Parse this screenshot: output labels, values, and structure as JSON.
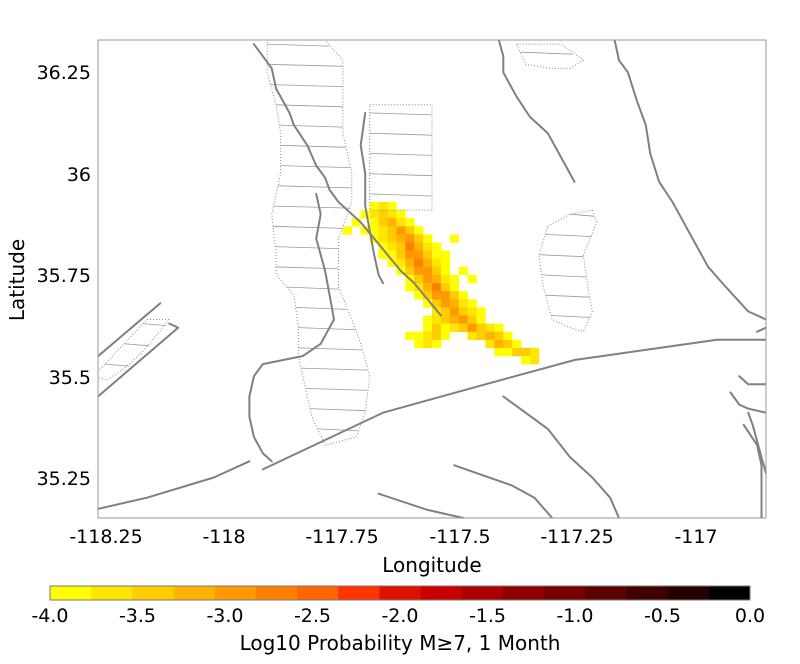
{
  "map": {
    "xlabel": "Longitude",
    "ylabel": "Latitude",
    "x_ticks": [
      "-118.25",
      "-118",
      "-117.75",
      "-117.5",
      "-117.25",
      "-117"
    ],
    "y_ticks": [
      "36.25",
      "36",
      "35.75",
      "35.5",
      "35.25"
    ],
    "xlim": [
      -118.37,
      -116.87
    ],
    "ylim": [
      35.15,
      36.33
    ],
    "frame_color": "#999999",
    "fault_color": "#808080"
  },
  "colorbar": {
    "label": "Log10 Probability M≥7, 1 Month",
    "ticks": [
      "-4.0",
      "-3.5",
      "-3.0",
      "-2.5",
      "-2.0",
      "-1.5",
      "-1.0",
      "-0.5",
      "0.0"
    ],
    "range": [
      -4.0,
      0.0
    ],
    "colors": [
      "#ffff00",
      "#ffe600",
      "#ffcc00",
      "#ffb300",
      "#ff9900",
      "#ff8000",
      "#ff6600",
      "#ff3300",
      "#e01000",
      "#c80000",
      "#aa0000",
      "#8f0000",
      "#760000",
      "#5c0000",
      "#400000",
      "#250000",
      "#000000"
    ]
  },
  "chart_data": {
    "type": "heatmap",
    "xlabel": "Longitude",
    "ylabel": "Latitude",
    "cell_deg": 0.02,
    "cells": [
      [
        -117.75,
        35.92,
        -3.9
      ],
      [
        -117.73,
        35.92,
        -3.7
      ],
      [
        -117.71,
        35.92,
        -3.9
      ],
      [
        -117.77,
        35.9,
        -4.0
      ],
      [
        -117.75,
        35.9,
        -3.6
      ],
      [
        -117.73,
        35.9,
        -3.3
      ],
      [
        -117.71,
        35.9,
        -3.6
      ],
      [
        -117.69,
        35.9,
        -4.0
      ],
      [
        -117.79,
        35.88,
        -4.0
      ],
      [
        -117.75,
        35.88,
        -3.8
      ],
      [
        -117.73,
        35.88,
        -3.4
      ],
      [
        -117.71,
        35.88,
        -3.2
      ],
      [
        -117.69,
        35.88,
        -3.6
      ],
      [
        -117.67,
        35.88,
        -4.0
      ],
      [
        -117.75,
        35.86,
        -4.0
      ],
      [
        -117.73,
        35.86,
        -3.7
      ],
      [
        -117.71,
        35.86,
        -3.3
      ],
      [
        -117.69,
        35.86,
        -3.0
      ],
      [
        -117.67,
        35.86,
        -3.5
      ],
      [
        -117.65,
        35.86,
        -4.0
      ],
      [
        -117.75,
        35.84,
        -3.9
      ],
      [
        -117.73,
        35.84,
        -3.6
      ],
      [
        -117.71,
        35.84,
        -3.5
      ],
      [
        -117.69,
        35.84,
        -3.1
      ],
      [
        -117.67,
        35.84,
        -2.9
      ],
      [
        -117.65,
        35.84,
        -3.4
      ],
      [
        -117.63,
        35.84,
        -3.9
      ],
      [
        -117.73,
        35.82,
        -3.9
      ],
      [
        -117.71,
        35.82,
        -3.6
      ],
      [
        -117.69,
        35.82,
        -3.3
      ],
      [
        -117.67,
        35.82,
        -2.8
      ],
      [
        -117.65,
        35.82,
        -3.1
      ],
      [
        -117.63,
        35.82,
        -3.6
      ],
      [
        -117.61,
        35.82,
        -4.0
      ],
      [
        -117.73,
        35.8,
        -4.0
      ],
      [
        -117.71,
        35.8,
        -3.8
      ],
      [
        -117.69,
        35.8,
        -3.5
      ],
      [
        -117.67,
        35.8,
        -3.0
      ],
      [
        -117.65,
        35.8,
        -2.9
      ],
      [
        -117.63,
        35.8,
        -3.4
      ],
      [
        -117.61,
        35.8,
        -3.8
      ],
      [
        -117.59,
        35.8,
        -4.0
      ],
      [
        -117.71,
        35.78,
        -3.9
      ],
      [
        -117.69,
        35.78,
        -3.6
      ],
      [
        -117.67,
        35.78,
        -3.2
      ],
      [
        -117.65,
        35.78,
        -2.8
      ],
      [
        -117.63,
        35.78,
        -3.2
      ],
      [
        -117.61,
        35.78,
        -3.6
      ],
      [
        -117.59,
        35.78,
        -3.9
      ],
      [
        -117.69,
        35.76,
        -3.9
      ],
      [
        -117.67,
        35.76,
        -3.5
      ],
      [
        -117.65,
        35.76,
        -3.0
      ],
      [
        -117.63,
        35.76,
        -2.9
      ],
      [
        -117.61,
        35.76,
        -3.4
      ],
      [
        -117.59,
        35.76,
        -3.8
      ],
      [
        -117.67,
        35.74,
        -3.8
      ],
      [
        -117.65,
        35.74,
        -3.3
      ],
      [
        -117.63,
        35.74,
        -2.9
      ],
      [
        -117.61,
        35.74,
        -3.1
      ],
      [
        -117.59,
        35.74,
        -3.6
      ],
      [
        -117.57,
        35.74,
        -4.0
      ],
      [
        -117.67,
        35.72,
        -3.9
      ],
      [
        -117.65,
        35.72,
        -3.6
      ],
      [
        -117.63,
        35.72,
        -3.2
      ],
      [
        -117.61,
        35.72,
        -2.8
      ],
      [
        -117.59,
        35.72,
        -3.3
      ],
      [
        -117.57,
        35.72,
        -3.8
      ],
      [
        -117.65,
        35.7,
        -3.9
      ],
      [
        -117.63,
        35.7,
        -3.5
      ],
      [
        -117.61,
        35.7,
        -3.0
      ],
      [
        -117.59,
        35.7,
        -3.0
      ],
      [
        -117.57,
        35.7,
        -3.5
      ],
      [
        -117.55,
        35.7,
        -3.9
      ],
      [
        -117.63,
        35.68,
        -3.8
      ],
      [
        -117.61,
        35.68,
        -3.3
      ],
      [
        -117.59,
        35.68,
        -2.9
      ],
      [
        -117.57,
        35.68,
        -3.2
      ],
      [
        -117.55,
        35.68,
        -3.7
      ],
      [
        -117.53,
        35.68,
        -4.0
      ],
      [
        -117.61,
        35.66,
        -3.6
      ],
      [
        -117.59,
        35.66,
        -3.4
      ],
      [
        -117.57,
        35.66,
        -3.0
      ],
      [
        -117.55,
        35.66,
        -3.3
      ],
      [
        -117.53,
        35.66,
        -3.7
      ],
      [
        -117.51,
        35.66,
        -4.0
      ],
      [
        -117.63,
        35.64,
        -3.9
      ],
      [
        -117.61,
        35.64,
        -3.7
      ],
      [
        -117.59,
        35.64,
        -3.5
      ],
      [
        -117.57,
        35.64,
        -3.2
      ],
      [
        -117.55,
        35.64,
        -3.0
      ],
      [
        -117.53,
        35.64,
        -3.4
      ],
      [
        -117.51,
        35.64,
        -3.8
      ],
      [
        -117.63,
        35.62,
        -3.8
      ],
      [
        -117.61,
        35.62,
        -3.5
      ],
      [
        -117.59,
        35.62,
        -3.9
      ],
      [
        -117.57,
        35.62,
        -3.6
      ],
      [
        -117.55,
        35.62,
        -3.3
      ],
      [
        -117.53,
        35.62,
        -3.0
      ],
      [
        -117.51,
        35.62,
        -3.3
      ],
      [
        -117.49,
        35.62,
        -3.7
      ],
      [
        -117.47,
        35.62,
        -4.0
      ],
      [
        -117.65,
        35.6,
        -4.0
      ],
      [
        -117.63,
        35.6,
        -3.6
      ],
      [
        -117.61,
        35.6,
        -3.4
      ],
      [
        -117.59,
        35.6,
        -3.8
      ],
      [
        -117.53,
        35.6,
        -3.7
      ],
      [
        -117.51,
        35.6,
        -3.3
      ],
      [
        -117.49,
        35.6,
        -3.1
      ],
      [
        -117.47,
        35.6,
        -3.4
      ],
      [
        -117.45,
        35.6,
        -3.8
      ],
      [
        -117.65,
        35.58,
        -3.9
      ],
      [
        -117.63,
        35.58,
        -3.7
      ],
      [
        -117.61,
        35.58,
        -3.9
      ],
      [
        -117.49,
        35.58,
        -3.6
      ],
      [
        -117.47,
        35.58,
        -3.2
      ],
      [
        -117.45,
        35.58,
        -3.4
      ],
      [
        -117.43,
        35.58,
        -3.8
      ],
      [
        -117.45,
        35.56,
        -3.9
      ],
      [
        -117.43,
        35.56,
        -3.5
      ],
      [
        -117.41,
        35.56,
        -3.3
      ],
      [
        -117.39,
        35.56,
        -3.7
      ],
      [
        -117.41,
        35.54,
        -4.0
      ],
      [
        -117.39,
        35.54,
        -3.7
      ],
      [
        -117.61,
        35.82,
        -3.9
      ],
      [
        -117.57,
        35.84,
        -4.0
      ],
      [
        -117.55,
        35.76,
        -3.8
      ],
      [
        -117.53,
        35.74,
        -4.0
      ],
      [
        -117.77,
        35.86,
        -3.9
      ],
      [
        -117.81,
        35.86,
        -4.0
      ],
      [
        -117.47,
        35.56,
        -3.9
      ],
      [
        -117.67,
        35.6,
        -4.0
      ]
    ],
    "faults": [
      [
        [
          -118.38,
          35.54
        ],
        [
          -118.23,
          35.68
        ]
      ],
      [
        [
          -118.37,
          35.45
        ],
        [
          -118.19,
          35.62
        ],
        [
          -118.21,
          35.63
        ]
      ],
      [
        [
          -118.02,
          36.32
        ],
        [
          -118.0,
          36.29
        ],
        [
          -117.98,
          36.26
        ],
        [
          -117.97,
          36.21
        ],
        [
          -117.94,
          36.15
        ],
        [
          -117.93,
          36.12
        ],
        [
          -117.9,
          36.07
        ],
        [
          -117.88,
          36.02
        ],
        [
          -117.86,
          35.99
        ],
        [
          -117.85,
          35.96
        ],
        [
          -117.83,
          35.93
        ],
        [
          -117.81,
          35.91
        ],
        [
          -117.78,
          35.88
        ],
        [
          -117.75,
          35.84
        ],
        [
          -117.72,
          35.8
        ],
        [
          -117.69,
          35.76
        ],
        [
          -117.66,
          35.73
        ],
        [
          -117.63,
          35.69
        ],
        [
          -117.6,
          35.65
        ]
      ],
      [
        [
          -117.88,
          35.95
        ],
        [
          -117.87,
          35.9
        ],
        [
          -117.88,
          35.84
        ],
        [
          -117.86,
          35.76
        ],
        [
          -117.85,
          35.7
        ],
        [
          -117.84,
          35.64
        ],
        [
          -117.87,
          35.58
        ],
        [
          -117.91,
          35.55
        ],
        [
          -118.0,
          35.53
        ],
        [
          -118.02,
          35.5
        ],
        [
          -118.03,
          35.45
        ],
        [
          -118.03,
          35.4
        ],
        [
          -118.02,
          35.35
        ],
        [
          -118.0,
          35.31
        ],
        [
          -117.98,
          35.29
        ]
      ],
      [
        [
          -117.77,
          36.15
        ],
        [
          -117.78,
          36.07
        ],
        [
          -117.77,
          36.0
        ],
        [
          -117.77,
          35.92
        ],
        [
          -117.76,
          35.86
        ],
        [
          -117.75,
          35.8
        ],
        [
          -117.74,
          35.75
        ],
        [
          -117.73,
          35.73
        ]
      ],
      [
        [
          -118.0,
          35.27
        ],
        [
          -117.73,
          35.41
        ],
        [
          -117.5,
          35.48
        ],
        [
          -117.3,
          35.54
        ],
        [
          -116.98,
          35.59
        ],
        [
          -116.87,
          35.59
        ]
      ],
      [
        [
          -118.03,
          35.29
        ],
        [
          -118.11,
          35.25
        ],
        [
          -118.26,
          35.2
        ],
        [
          -118.38,
          35.17
        ]
      ],
      [
        [
          -117.74,
          35.21
        ],
        [
          -117.63,
          35.17
        ],
        [
          -117.55,
          35.15
        ]
      ],
      [
        [
          -117.57,
          35.28
        ],
        [
          -117.44,
          35.23
        ],
        [
          -117.39,
          35.2
        ],
        [
          -117.35,
          35.15
        ]
      ],
      [
        [
          -117.46,
          35.45
        ],
        [
          -117.36,
          35.37
        ],
        [
          -117.31,
          35.3
        ],
        [
          -117.26,
          35.25
        ],
        [
          -117.22,
          35.2
        ],
        [
          -117.2,
          35.15
        ]
      ],
      [
        [
          -117.47,
          36.33
        ],
        [
          -117.46,
          36.29
        ],
        [
          -117.46,
          36.25
        ],
        [
          -117.43,
          36.19
        ],
        [
          -117.4,
          36.14
        ],
        [
          -117.36,
          36.1
        ],
        [
          -117.34,
          36.06
        ],
        [
          -117.32,
          36.02
        ],
        [
          -117.3,
          35.98
        ]
      ],
      [
        [
          -117.21,
          36.33
        ],
        [
          -117.2,
          36.28
        ],
        [
          -117.18,
          36.25
        ],
        [
          -117.16,
          36.18
        ],
        [
          -117.14,
          36.12
        ],
        [
          -117.13,
          36.05
        ],
        [
          -117.11,
          35.98
        ],
        [
          -117.08,
          35.93
        ],
        [
          -117.06,
          35.89
        ],
        [
          -117.03,
          35.83
        ],
        [
          -117.0,
          35.77
        ],
        [
          -116.96,
          35.72
        ],
        [
          -116.91,
          35.66
        ],
        [
          -116.87,
          35.64
        ]
      ],
      [
        [
          -116.93,
          35.5
        ],
        [
          -116.91,
          35.48
        ],
        [
          -116.87,
          35.48
        ]
      ],
      [
        [
          -116.95,
          35.46
        ],
        [
          -116.93,
          35.43
        ],
        [
          -116.91,
          35.42
        ],
        [
          -116.87,
          35.41
        ]
      ],
      [
        [
          -116.91,
          35.41
        ],
        [
          -116.9,
          35.38
        ],
        [
          -116.89,
          35.34
        ],
        [
          -116.88,
          35.3
        ],
        [
          -116.87,
          35.26
        ]
      ],
      [
        [
          -116.92,
          35.38
        ],
        [
          -116.89,
          35.33
        ],
        [
          -116.88,
          35.28
        ],
        [
          -116.88,
          35.15
        ]
      ],
      [
        [
          -116.89,
          35.61
        ],
        [
          -116.87,
          35.62
        ]
      ]
    ],
    "dotted_zones": [
      [
        [
          -117.76,
          36.17
        ],
        [
          -117.62,
          36.17
        ],
        [
          -117.62,
          35.91
        ],
        [
          -117.76,
          35.91
        ]
      ],
      [
        [
          -117.99,
          36.33
        ],
        [
          -117.86,
          36.33
        ],
        [
          -117.82,
          36.28
        ],
        [
          -117.82,
          36.1
        ],
        [
          -117.8,
          36.0
        ],
        [
          -117.8,
          35.93
        ],
        [
          -117.83,
          35.84
        ],
        [
          -117.83,
          35.72
        ],
        [
          -117.8,
          35.64
        ],
        [
          -117.78,
          35.58
        ],
        [
          -117.76,
          35.5
        ],
        [
          -117.77,
          35.41
        ],
        [
          -117.79,
          35.35
        ],
        [
          -117.86,
          35.33
        ],
        [
          -117.89,
          35.4
        ],
        [
          -117.9,
          35.45
        ],
        [
          -117.92,
          35.55
        ],
        [
          -117.92,
          35.62
        ],
        [
          -117.93,
          35.7
        ],
        [
          -117.97,
          35.75
        ],
        [
          -117.97,
          35.8
        ],
        [
          -117.98,
          35.9
        ],
        [
          -117.96,
          36.0
        ],
        [
          -117.96,
          36.1
        ],
        [
          -117.97,
          36.17
        ],
        [
          -117.99,
          36.25
        ]
      ],
      [
        [
          -118.38,
          35.5
        ],
        [
          -118.26,
          35.64
        ],
        [
          -118.21,
          35.64
        ],
        [
          -118.24,
          35.6
        ],
        [
          -118.27,
          35.56
        ],
        [
          -118.31,
          35.52
        ],
        [
          -118.35,
          35.49
        ]
      ],
      [
        [
          -117.43,
          36.32
        ],
        [
          -117.33,
          36.32
        ],
        [
          -117.28,
          36.28
        ],
        [
          -117.31,
          36.26
        ],
        [
          -117.35,
          36.26
        ],
        [
          -117.41,
          36.27
        ]
      ],
      [
        [
          -117.36,
          35.87
        ],
        [
          -117.31,
          35.9
        ],
        [
          -117.26,
          35.91
        ],
        [
          -117.25,
          35.88
        ],
        [
          -117.28,
          35.8
        ],
        [
          -117.27,
          35.72
        ],
        [
          -117.26,
          35.66
        ],
        [
          -117.28,
          35.61
        ],
        [
          -117.31,
          35.62
        ],
        [
          -117.35,
          35.64
        ],
        [
          -117.37,
          35.72
        ],
        [
          -117.38,
          35.8
        ]
      ]
    ]
  }
}
